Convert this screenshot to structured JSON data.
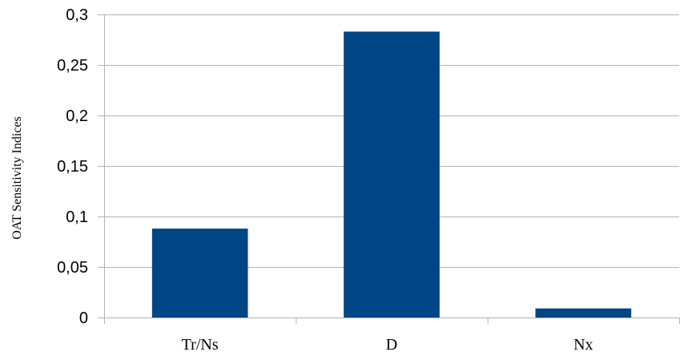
{
  "chart_data": {
    "type": "bar",
    "title": "",
    "xlabel": "",
    "ylabel": "OAT Sensitivity Indices",
    "categories": [
      "Tr/Ns",
      "D",
      "Nx"
    ],
    "values": [
      0.088,
      0.283,
      0.009
    ],
    "ylim": [
      0,
      0.3
    ],
    "yticks": [
      0,
      0.05,
      0.1,
      0.15,
      0.2,
      0.25,
      0.3
    ],
    "ytick_labels": [
      "0",
      "0,05",
      "0,1",
      "0,15",
      "0,2",
      "0,25",
      "0,3"
    ],
    "grid": true,
    "legend": "none",
    "bar_color": "#004586",
    "grid_color": "#b3b3b3",
    "axis_color": "#b3b3b3"
  }
}
